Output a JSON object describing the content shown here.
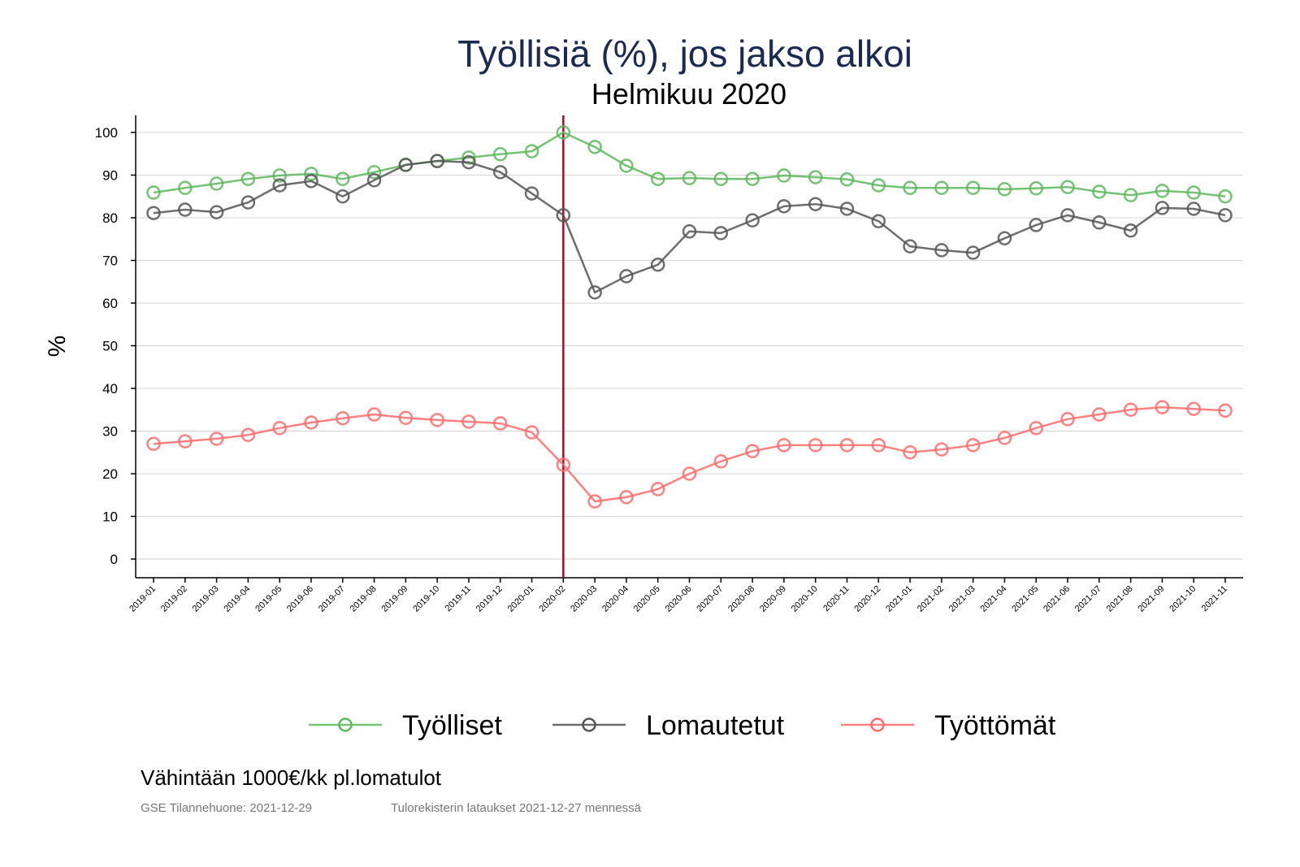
{
  "chart_data": {
    "type": "line",
    "title": "Työllisiä (%), jos jakso alkoi",
    "subtitle": "Helmikuu 2020",
    "xlabel": "",
    "ylabel": "%",
    "ylim": [
      -4,
      104
    ],
    "yticks": [
      0,
      10,
      20,
      30,
      40,
      50,
      60,
      70,
      80,
      90,
      100
    ],
    "grid": true,
    "legend_position": "bottom",
    "reference_line": {
      "x": "2020-02",
      "color": "#a0102e"
    },
    "x": [
      "2019-01",
      "2019-02",
      "2019-03",
      "2019-04",
      "2019-05",
      "2019-06",
      "2019-07",
      "2019-08",
      "2019-09",
      "2019-10",
      "2019-11",
      "2019-12",
      "2020-01",
      "2020-02",
      "2020-03",
      "2020-04",
      "2020-05",
      "2020-06",
      "2020-07",
      "2020-08",
      "2020-09",
      "2020-10",
      "2020-11",
      "2020-12",
      "2021-01",
      "2021-02",
      "2021-03",
      "2021-04",
      "2021-05",
      "2021-06",
      "2021-07",
      "2021-08",
      "2021-09",
      "2021-10",
      "2021-11"
    ],
    "series": [
      {
        "name": "Työlliset",
        "color": "#5cb85c",
        "values": [
          85.9,
          87.0,
          88.0,
          89.1,
          89.9,
          90.3,
          89.1,
          90.7,
          92.4,
          93.3,
          94.1,
          94.9,
          95.6,
          100,
          96.6,
          92.2,
          89.1,
          89.3,
          89.1,
          89.1,
          89.9,
          89.5,
          89.0,
          87.6,
          87.0,
          87.0,
          87.0,
          86.7,
          86.9,
          87.2,
          86.1,
          85.3,
          86.3,
          85.9,
          85.0
        ]
      },
      {
        "name": "Lomautetut",
        "color": "#555555",
        "values": [
          81.1,
          81.9,
          81.3,
          83.6,
          87.6,
          88.6,
          85.0,
          88.8,
          92.4,
          93.3,
          93.0,
          90.7,
          85.7,
          80.6,
          62.5,
          66.3,
          69.0,
          76.8,
          76.4,
          79.4,
          82.7,
          83.2,
          82.1,
          79.2,
          73.3,
          72.4,
          71.8,
          75.2,
          78.3,
          80.6,
          78.9,
          77.0,
          82.3,
          82.1,
          80.6
        ]
      },
      {
        "name": "Työttömät",
        "color": "#ff6b6b",
        "values": [
          27.0,
          27.6,
          28.2,
          29.1,
          30.7,
          32.0,
          33.0,
          33.9,
          33.1,
          32.6,
          32.2,
          31.8,
          29.7,
          22.1,
          13.5,
          14.5,
          16.4,
          20.0,
          22.9,
          25.3,
          26.7,
          26.7,
          26.7,
          26.7,
          25.0,
          25.7,
          26.7,
          28.4,
          30.7,
          32.8,
          33.9,
          35.0,
          35.6,
          35.2,
          34.8
        ]
      }
    ],
    "note": "Vähintään 1000€/kk pl.lomatulot",
    "source_left": "GSE Tilannehuone: 2021-12-29",
    "source_right": "Tulorekisterin lataukset 2021-12-27 mennessä"
  }
}
